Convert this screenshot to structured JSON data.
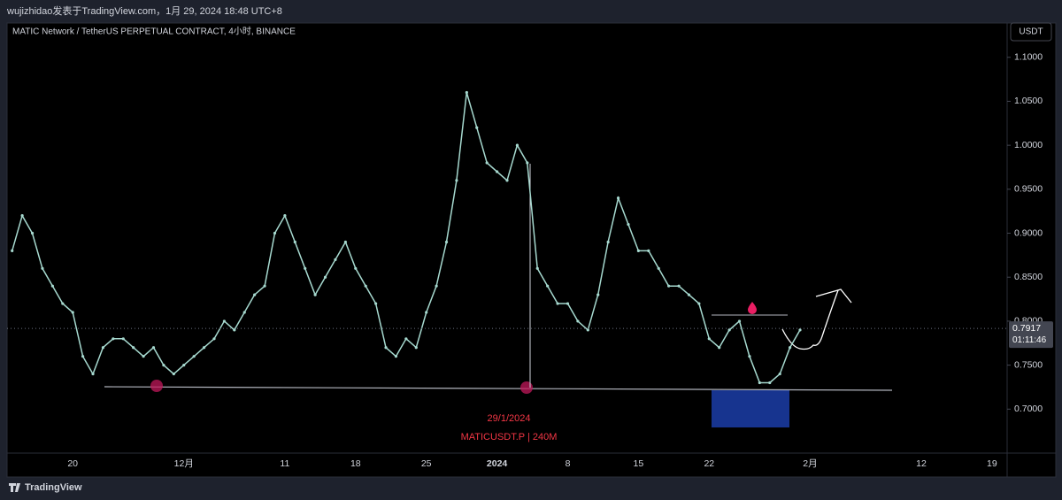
{
  "header": {
    "byline": "wujizhidao发表于TradingView.com，1月 29, 2024 18:48 UTC+8"
  },
  "footer": {
    "brand": "TradingView"
  },
  "chart_data": {
    "type": "line",
    "title": "MATIC Network / TetherUS PERPETUAL CONTRACT, 4小时, BINANCE",
    "currency": "USDT",
    "color": "#a6d9cf",
    "categories": [
      null,
      null,
      null,
      null,
      null,
      null,
      "20",
      null,
      null,
      null,
      null,
      null,
      null,
      null,
      null,
      null,
      null,
      "12月",
      null,
      null,
      null,
      null,
      null,
      null,
      null,
      null,
      null,
      "11",
      null,
      null,
      null,
      null,
      null,
      null,
      "18",
      null,
      null,
      null,
      null,
      null,
      null,
      "25",
      null,
      null,
      null,
      null,
      null,
      null,
      "2024",
      null,
      null,
      null,
      null,
      null,
      null,
      "8",
      null,
      null,
      null,
      null,
      null,
      null,
      "15",
      null,
      null,
      null,
      null,
      null,
      null,
      "22",
      null,
      null,
      null,
      null,
      null,
      null,
      null,
      null,
      null,
      "2月",
      null,
      null,
      null,
      null,
      null,
      null,
      null,
      null,
      null,
      null,
      "12",
      null,
      null,
      null,
      null,
      null,
      null,
      "19",
      null
    ],
    "values": [
      0.88,
      0.92,
      0.9,
      0.86,
      0.84,
      0.82,
      0.81,
      0.76,
      0.74,
      0.77,
      0.78,
      0.78,
      0.77,
      0.76,
      0.77,
      0.75,
      0.74,
      0.75,
      0.76,
      0.77,
      0.78,
      0.8,
      0.79,
      0.81,
      0.83,
      0.84,
      0.9,
      0.92,
      0.89,
      0.86,
      0.83,
      0.85,
      0.87,
      0.89,
      0.86,
      0.84,
      0.82,
      0.77,
      0.76,
      0.78,
      0.77,
      0.81,
      0.84,
      0.89,
      0.96,
      1.06,
      1.02,
      0.98,
      0.97,
      0.96,
      1.0,
      0.98,
      0.86,
      0.84,
      0.82,
      0.82,
      0.8,
      0.79,
      0.83,
      0.89,
      0.94,
      0.91,
      0.88,
      0.88,
      0.86,
      0.84,
      0.84,
      0.83,
      0.82,
      0.78,
      0.77,
      0.79,
      0.8,
      0.76,
      0.73,
      0.73,
      0.74,
      0.77,
      0.79,
      null,
      null,
      null,
      null,
      null,
      null,
      null,
      null,
      null,
      null,
      null,
      null,
      null,
      null,
      null,
      null,
      null,
      null,
      null,
      null
    ],
    "ylim": [
      0.65,
      1.139
    ],
    "yticks": [
      {
        "value": 0.7,
        "label": "0.7000"
      },
      {
        "value": 0.75,
        "label": "0.7500"
      },
      {
        "value": 0.8,
        "label": "0.8000"
      },
      {
        "value": 0.85,
        "label": "0.8500"
      },
      {
        "value": 0.9,
        "label": "0.9000"
      },
      {
        "value": 0.95,
        "label": "0.9500"
      },
      {
        "value": 1.0,
        "label": "1.0000"
      },
      {
        "value": 1.05,
        "label": "1.0500"
      },
      {
        "value": 1.1,
        "label": "1.1000"
      }
    ],
    "last_price": 0.7917,
    "countdown": "01:11:46",
    "annotations": [
      "29/1/2024",
      "MATICUSDT.P | 240M"
    ]
  }
}
